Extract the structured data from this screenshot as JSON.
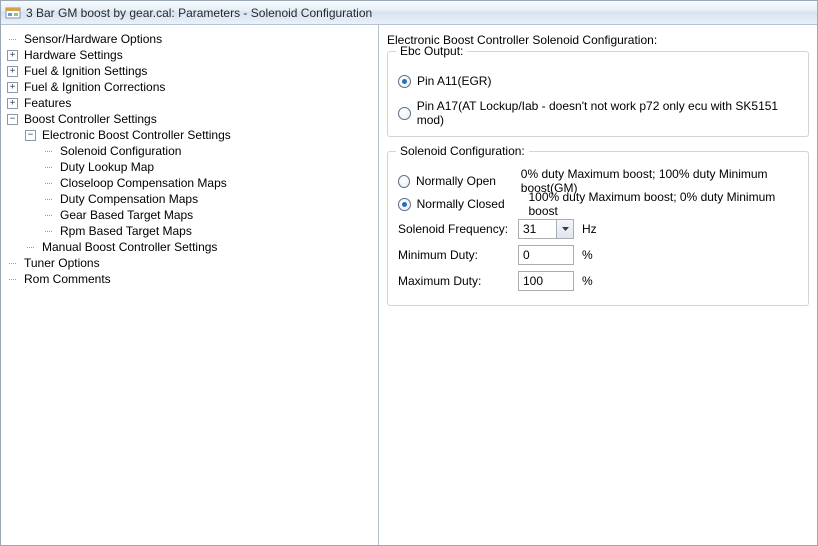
{
  "window": {
    "title": "3 Bar GM boost by gear.cal: Parameters - Solenoid Configuration"
  },
  "tree": [
    {
      "level": 0,
      "toggle": "none",
      "label": "Sensor/Hardware Options"
    },
    {
      "level": 0,
      "toggle": "plus",
      "label": "Hardware Settings"
    },
    {
      "level": 0,
      "toggle": "plus",
      "label": "Fuel & Ignition Settings"
    },
    {
      "level": 0,
      "toggle": "plus",
      "label": "Fuel & Ignition Corrections"
    },
    {
      "level": 0,
      "toggle": "plus",
      "label": "Features"
    },
    {
      "level": 0,
      "toggle": "minus",
      "label": "Boost Controller Settings"
    },
    {
      "level": 1,
      "toggle": "minus",
      "label": "Electronic Boost Controller Settings"
    },
    {
      "level": 2,
      "toggle": "none",
      "label": "Solenoid Configuration"
    },
    {
      "level": 2,
      "toggle": "none",
      "label": "Duty Lookup Map"
    },
    {
      "level": 2,
      "toggle": "none",
      "label": "Closeloop Compensation Maps"
    },
    {
      "level": 2,
      "toggle": "none",
      "label": "Duty Compensation Maps"
    },
    {
      "level": 2,
      "toggle": "none",
      "label": "Gear Based Target Maps"
    },
    {
      "level": 2,
      "toggle": "none",
      "label": "Rpm Based Target Maps"
    },
    {
      "level": 1,
      "toggle": "none",
      "label": "Manual Boost Controller Settings"
    },
    {
      "level": 0,
      "toggle": "none",
      "label": "Tuner Options"
    },
    {
      "level": 0,
      "toggle": "none",
      "label": "Rom Comments"
    }
  ],
  "panel": {
    "heading": "Electronic Boost Controller Solenoid Configuration:",
    "ebc": {
      "group_label": "Ebc Output:",
      "opt1": {
        "label": "Pin A11(EGR)",
        "checked": true
      },
      "opt2": {
        "label": "Pin A17(AT Lockup/Iab - doesn't not work p72 only ecu with SK5151 mod)",
        "checked": false
      }
    },
    "sol": {
      "group_label": "Solenoid Configuration:",
      "opt_open": {
        "label": "Normally Open",
        "desc": "0% duty Maximum boost; 100% duty Minimum boost(GM)",
        "checked": false
      },
      "opt_closed": {
        "label": "Normally Closed",
        "desc": "100% duty Maximum boost; 0% duty Minimum boost",
        "checked": true
      },
      "freq_label": "Solenoid Frequency:",
      "freq_value": "31",
      "freq_unit": "Hz",
      "min_label": "Minimum Duty:",
      "min_value": "0",
      "min_unit": "%",
      "max_label": "Maximum Duty:",
      "max_value": "100",
      "max_unit": "%"
    }
  }
}
